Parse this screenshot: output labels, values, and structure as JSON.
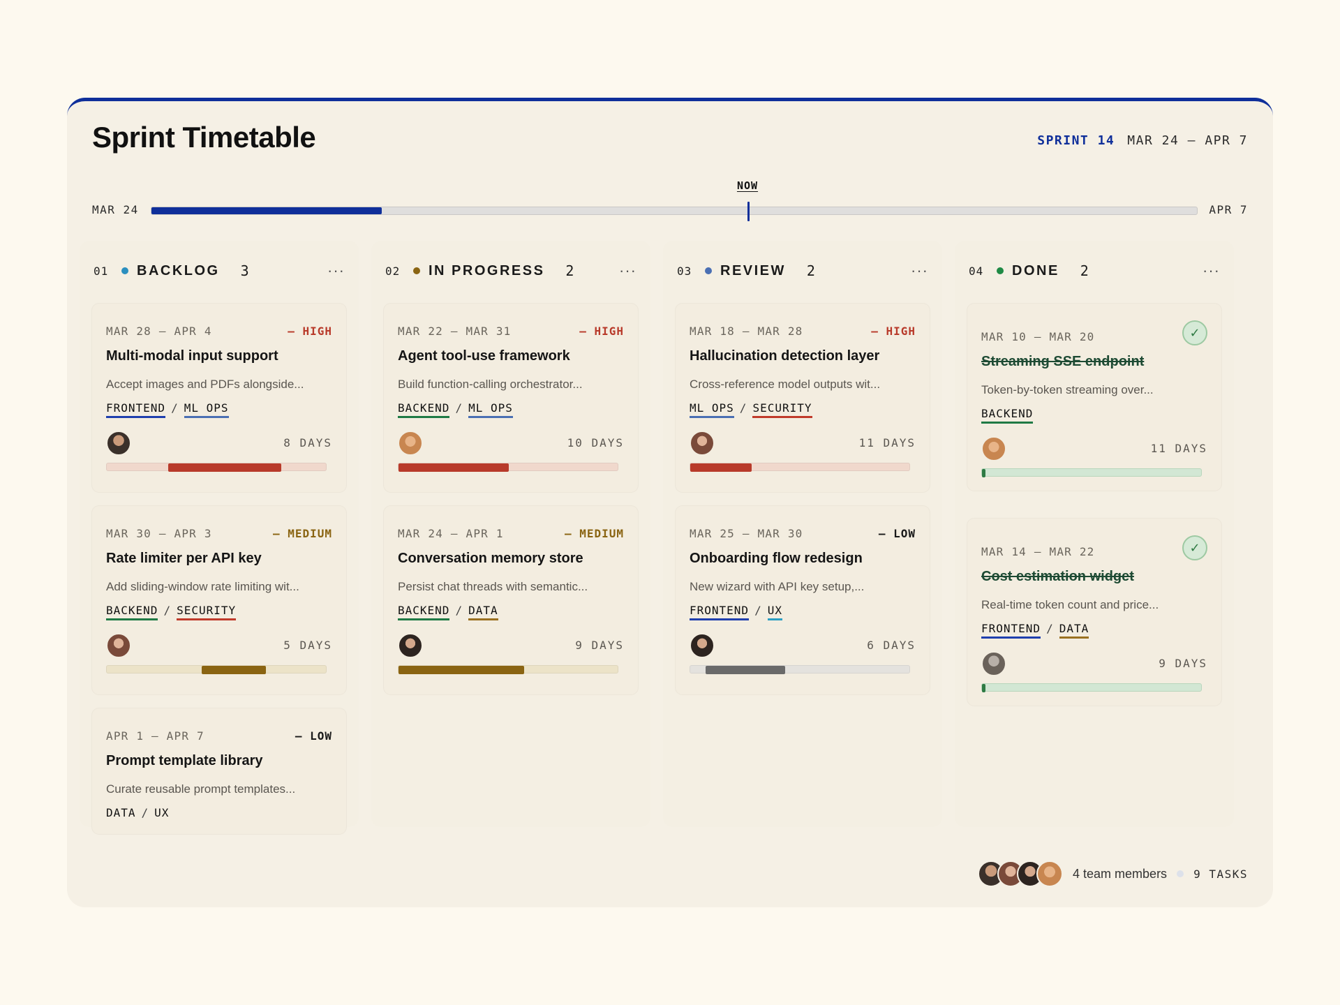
{
  "header": {
    "title": "Sprint Timetable",
    "sprint_label": "SPRINT 14",
    "sprint_range": "MAR 24 – APR 7"
  },
  "timeline": {
    "start": "MAR 24",
    "end": "APR 7",
    "now_label": "NOW",
    "progress_fraction": 0.22,
    "now_fraction": 0.57
  },
  "colors": {
    "accent": "#0f2f9a",
    "high": "#b83a2a",
    "medium": "#8a6412",
    "low": "#1a1a1a",
    "done": "#2e7a43",
    "backlog_dot": "#2b8fbf",
    "progress_dot": "#8a6412",
    "review_dot": "#4a6fb3",
    "done_dot": "#1f8a45"
  },
  "columns": [
    {
      "num": "01",
      "title": "BACKLOG",
      "count": "3",
      "cards": [
        {
          "dates": "MAR 28 – APR 4",
          "priority": "– HIGH",
          "title": "Multi-modal input support",
          "desc": "Accept images and PDFs alongside...",
          "tags": [
            "FRONTEND",
            "ML OPS"
          ],
          "days": "8 DAYS",
          "bar_start": 0.28,
          "bar_end": 0.79
        },
        {
          "dates": "MAR 30 – APR 3",
          "priority": "– MEDIUM",
          "title": "Rate limiter per API key",
          "desc": "Add sliding-window rate limiting wit...",
          "tags": [
            "BACKEND",
            "SECURITY"
          ],
          "days": "5 DAYS",
          "bar_start": 0.43,
          "bar_end": 0.72
        },
        {
          "dates": "APR 1 – APR 7",
          "priority": "– LOW",
          "title": "Prompt template library",
          "desc": "Curate reusable prompt templates...",
          "tags": [
            "DATA",
            "UX"
          ]
        }
      ]
    },
    {
      "num": "02",
      "title": "IN PROGRESS",
      "count": "2",
      "cards": [
        {
          "dates": "MAR 22 – MAR 31",
          "priority": "– HIGH",
          "title": "Agent tool-use framework",
          "desc": "Build function-calling orchestrator...",
          "tags": [
            "BACKEND",
            "ML OPS"
          ],
          "days": "10 DAYS",
          "bar_start": 0.0,
          "bar_end": 0.5
        },
        {
          "dates": "MAR 24 – APR 1",
          "priority": "– MEDIUM",
          "title": "Conversation memory store",
          "desc": "Persist chat threads with semantic...",
          "tags": [
            "BACKEND",
            "DATA"
          ],
          "days": "9 DAYS",
          "bar_start": 0.0,
          "bar_end": 0.57
        }
      ]
    },
    {
      "num": "03",
      "title": "REVIEW",
      "count": "2",
      "cards": [
        {
          "dates": "MAR 18 – MAR 28",
          "priority": "– HIGH",
          "title": "Hallucination detection layer",
          "desc": "Cross-reference model outputs wit...",
          "tags": [
            "ML OPS",
            "SECURITY"
          ],
          "days": "11 DAYS",
          "bar_start": 0.0,
          "bar_end": 0.28
        },
        {
          "dates": "MAR 25 – MAR 30",
          "priority": "– LOW",
          "title": "Onboarding flow redesign",
          "desc": "New wizard with API key setup,...",
          "tags": [
            "FRONTEND",
            "UX"
          ],
          "days": "6 DAYS",
          "bar_start": 0.07,
          "bar_end": 0.43
        }
      ]
    },
    {
      "num": "04",
      "title": "DONE",
      "count": "2",
      "cards": [
        {
          "dates": "MAR 10 – MAR 20",
          "title": "Streaming SSE endpoint",
          "desc": "Token-by-token streaming over...",
          "tags": [
            "BACKEND"
          ],
          "days": "11 DAYS",
          "bar_end": 0.015,
          "check": "✓"
        },
        {
          "dates": "MAR 14 – MAR 22",
          "title": "Cost estimation widget",
          "desc": "Real-time token count and price...",
          "tags": [
            "FRONTEND",
            "DATA"
          ],
          "days": "9 DAYS",
          "bar_end": 0.015,
          "check": "✓"
        }
      ]
    }
  ],
  "footer": {
    "members": "4 team members",
    "tasks": "9 TASKS"
  }
}
